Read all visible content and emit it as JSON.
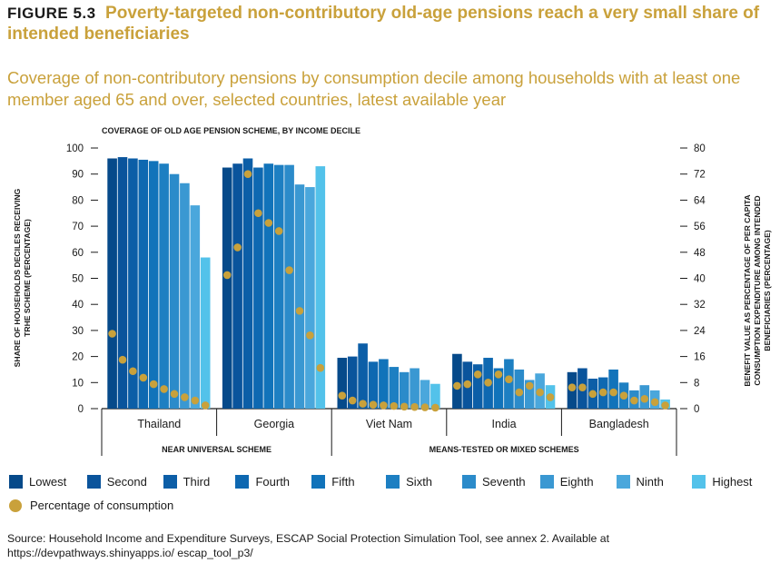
{
  "figure_label": "FIGURE 5.3",
  "figure_title": "Poverty-targeted non-contributory old-age pensions reach a very small share of intended beneficiaries",
  "subtitle": "Coverage of non-contributory pensions by consumption decile among households with at least one member aged 65 and over, selected countries, latest available year",
  "source": "Source: Household Income and Expenditure Surveys, ESCAP Social Protection Simulation Tool, see annex 2. Available at https://devpathways.shinyapps.io/ escap_tool_p3/",
  "colors": {
    "deciles": [
      "#064a8a",
      "#0a549c",
      "#0c5ea7",
      "#0e68b1",
      "#1173ba",
      "#1d7fc2",
      "#2b8bca",
      "#3a98d2",
      "#4aa7dc",
      "#53c2ea"
    ],
    "dot": "#c9a13b",
    "title": "#c9a13b",
    "axis": "#1a1a1a"
  },
  "legend": {
    "deciles": [
      "Lowest",
      "Second",
      "Third",
      "Fourth",
      "Fifth",
      "Sixth",
      "Seventh",
      "Eighth",
      "Ninth",
      "Highest"
    ],
    "consumption": "Percentage of consumption"
  },
  "chart_data": {
    "type": "bar",
    "title": "COVERAGE OF OLD AGE PENSION SCHEME, BY INCOME DECILE",
    "ylabel": "SHARE OF HOUSEHOLDS DECILES RECEIVING TRHE SCHEME (PERCENTAGE)",
    "y2label": "BENEFIT VALUE AS PERCENTAGE OF PER CAPITA CONSUMPTION EXPENDITURE AMONG INTENDED BENEFICIARIES (PERCENTAGE)",
    "ylim": [
      0,
      100
    ],
    "y2lim": [
      0,
      80
    ],
    "yticks": [
      0,
      10,
      20,
      30,
      40,
      50,
      60,
      70,
      80,
      90,
      100
    ],
    "y2ticks": [
      0,
      8,
      16,
      24,
      32,
      40,
      48,
      56,
      64,
      72,
      80
    ],
    "categories": [
      "Thailand",
      "Georgia",
      "Viet Nam",
      "India",
      "Bangladesh"
    ],
    "groups": [
      {
        "label": "NEAR UNIVERSAL SCHEME",
        "categories": [
          "Thailand",
          "Georgia"
        ]
      },
      {
        "label": "MEANS-TESTED OR MIXED SCHEMES",
        "categories": [
          "Viet Nam",
          "India",
          "Bangladesh"
        ]
      }
    ],
    "series": [
      {
        "name": "Lowest",
        "values": [
          96,
          92.5,
          19.5,
          21,
          14
        ]
      },
      {
        "name": "Second",
        "values": [
          96.5,
          94,
          20,
          18,
          15.5
        ]
      },
      {
        "name": "Third",
        "values": [
          96,
          96,
          25,
          17,
          11.5
        ]
      },
      {
        "name": "Fourth",
        "values": [
          95.5,
          92.5,
          18,
          19.5,
          12
        ]
      },
      {
        "name": "Fifth",
        "values": [
          95,
          94,
          19,
          15.5,
          15
        ]
      },
      {
        "name": "Sixth",
        "values": [
          94,
          93.5,
          16,
          19,
          10
        ]
      },
      {
        "name": "Seventh",
        "values": [
          90,
          93.5,
          14,
          15,
          7
        ]
      },
      {
        "name": "Eighth",
        "values": [
          86.5,
          86,
          15.5,
          11,
          9
        ]
      },
      {
        "name": "Ninth",
        "values": [
          78,
          85,
          11,
          13.5,
          7
        ]
      },
      {
        "name": "Highest",
        "values": [
          58,
          93,
          9.5,
          9,
          3.5
        ]
      }
    ],
    "consumption_series": {
      "name": "Percentage of consumption",
      "axis": "right",
      "values": [
        [
          23,
          15,
          11.5,
          9.5,
          7.5,
          6,
          4.5,
          3.5,
          2.5,
          1
        ],
        [
          41,
          49.5,
          72,
          60,
          57,
          54.5,
          42.5,
          30,
          22.5,
          12.5
        ],
        [
          4,
          2.5,
          1.5,
          1.2,
          1,
          0.8,
          0.6,
          0.5,
          0.4,
          0.3
        ],
        [
          7,
          7.5,
          10.5,
          8,
          10.5,
          9,
          5,
          7,
          5,
          3.5
        ],
        [
          6.5,
          6.5,
          4.5,
          5,
          5,
          4,
          2.5,
          3,
          2,
          1
        ]
      ]
    },
    "grid": false,
    "legend_position": "bottom"
  }
}
